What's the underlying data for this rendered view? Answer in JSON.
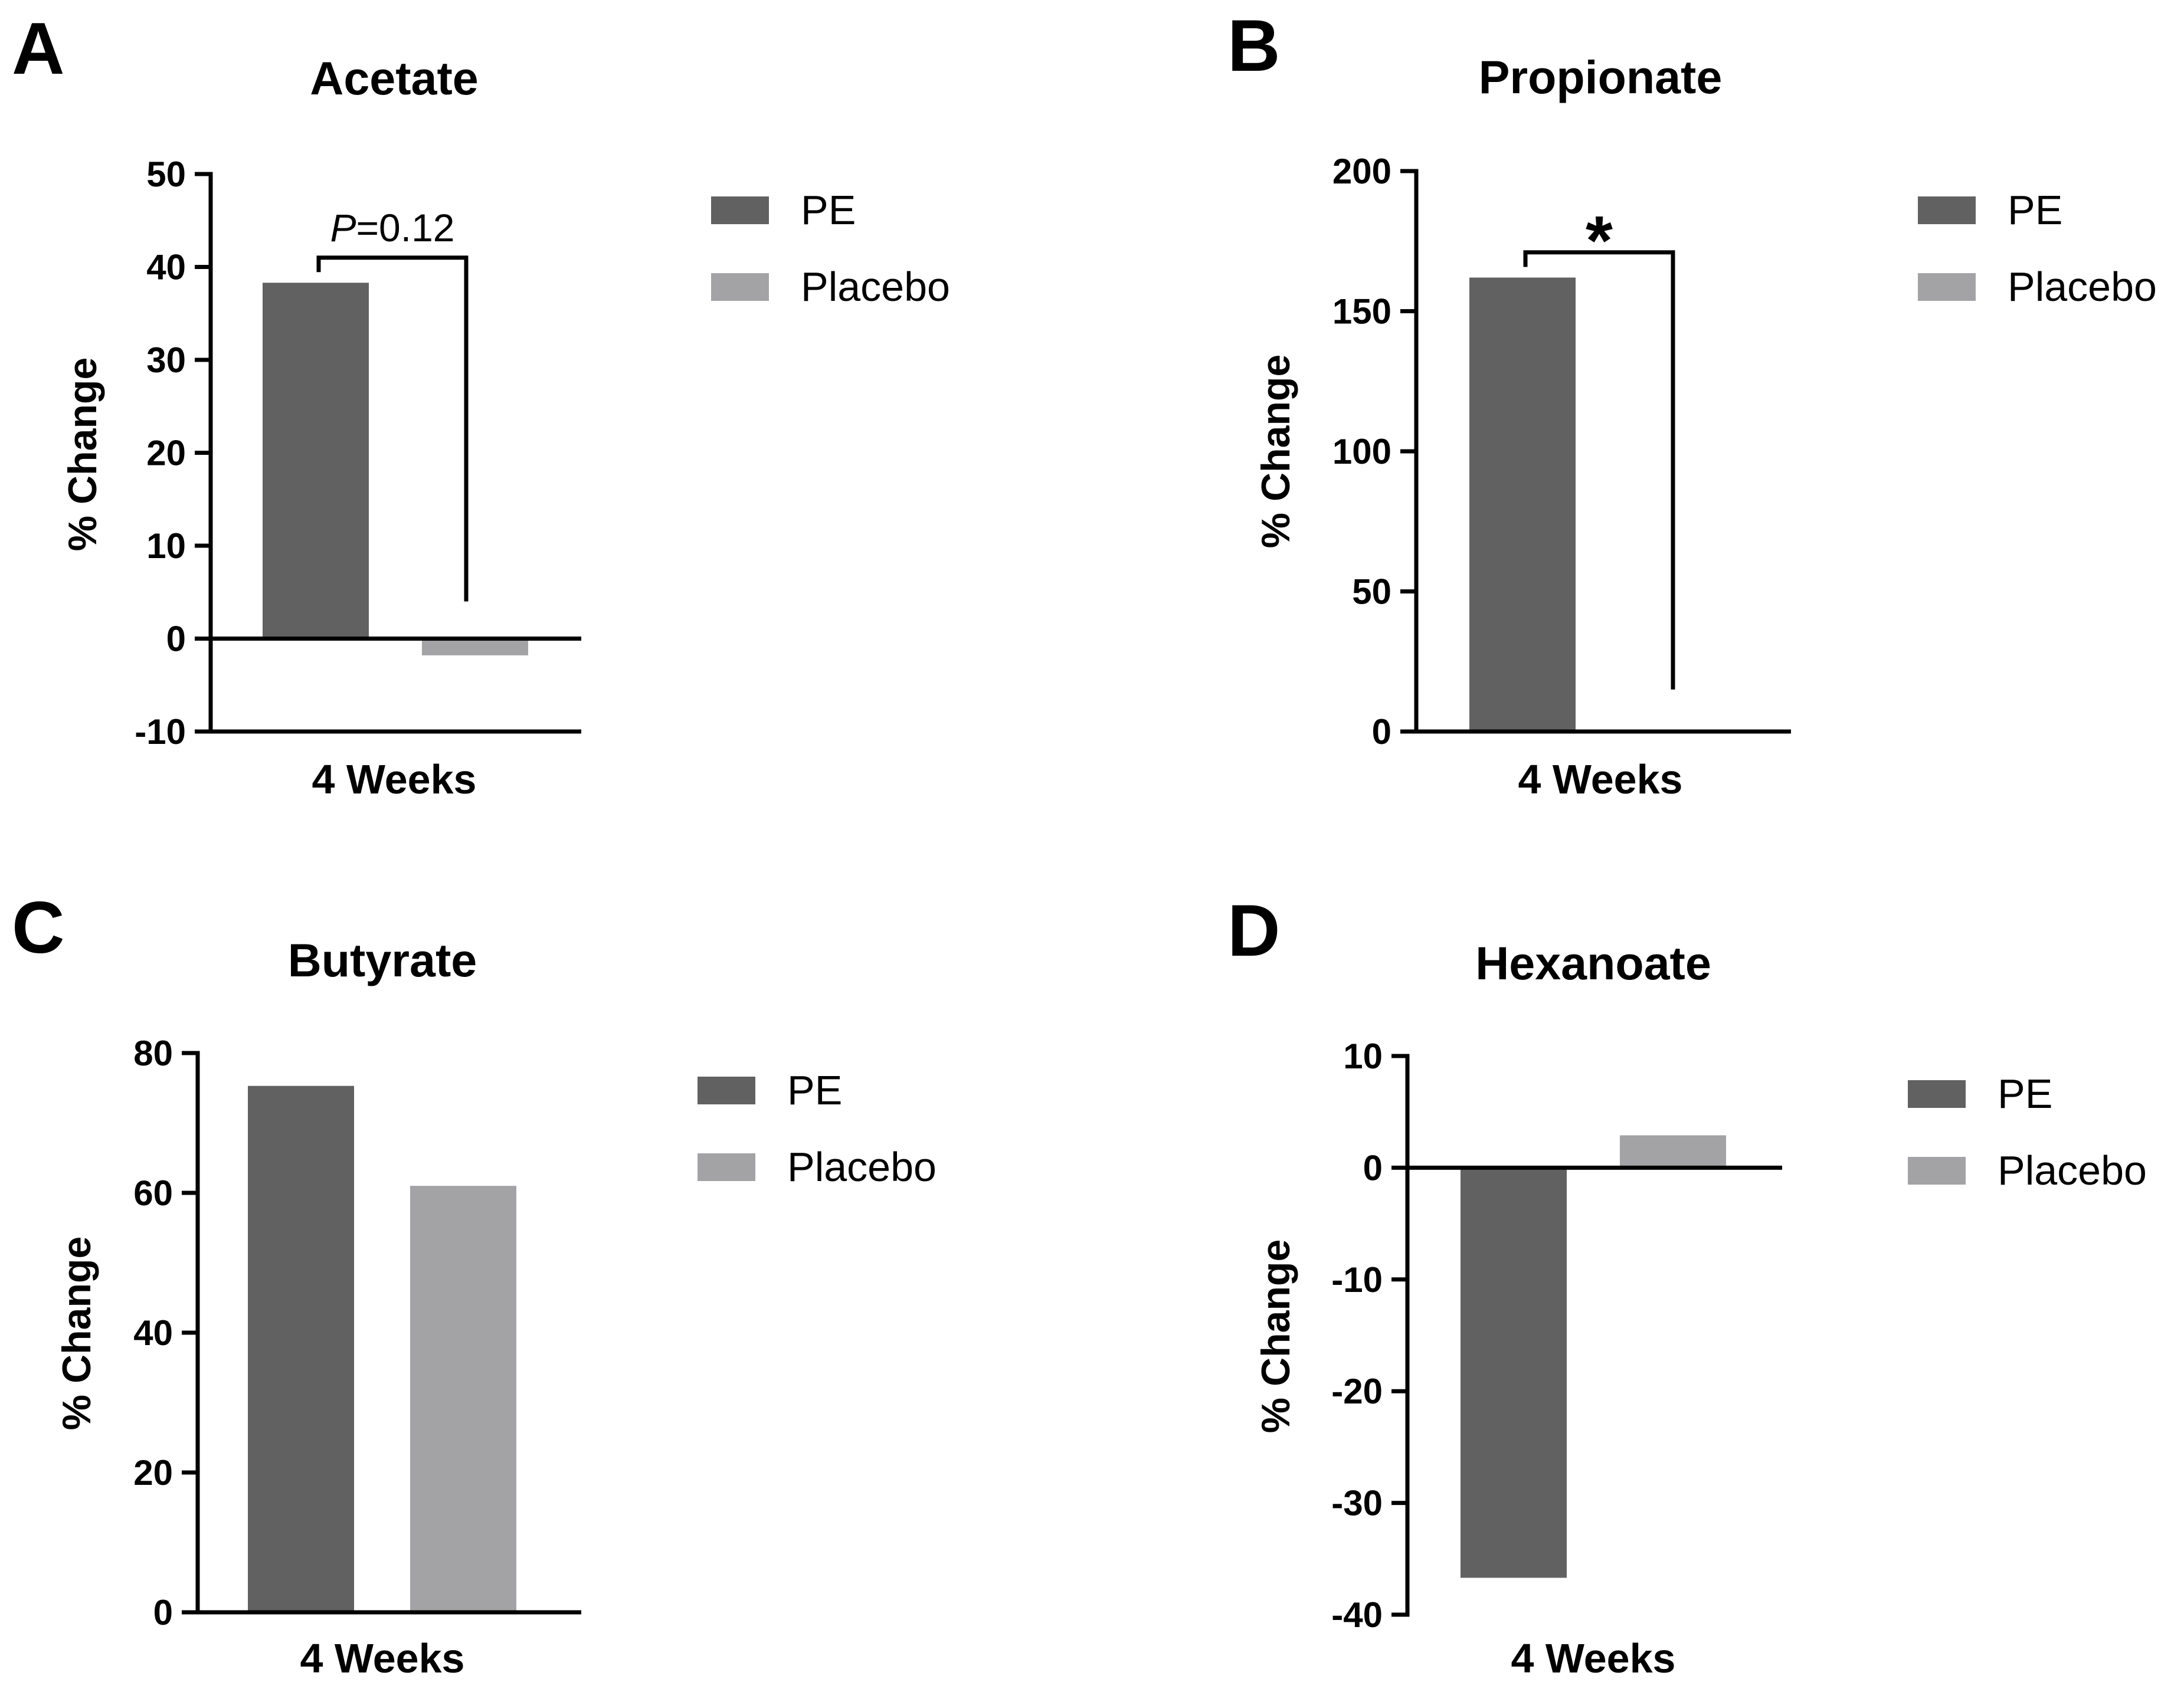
{
  "colors": {
    "PE": "#616161",
    "Placebo": "#a3a3a5",
    "axis": "#000000"
  },
  "chart_data": [
    {
      "panel": "A",
      "type": "bar",
      "title": "Acetate",
      "xlabel": "4 Weeks",
      "ylabel": "% Change",
      "ylim": [
        -10,
        50
      ],
      "yticks": [
        "-10",
        "0",
        "10",
        "20",
        "30",
        "40",
        "50"
      ],
      "legend_position": "right",
      "grid": false,
      "series": [
        {
          "name": "PE",
          "values": [
            38.3
          ]
        },
        {
          "name": "Placebo",
          "values": [
            -1.8
          ]
        }
      ],
      "annotation": {
        "prefix": "P",
        "suffix": "=0.12",
        "bracket_top": 41
      }
    },
    {
      "panel": "B",
      "type": "bar",
      "title": "Propionate",
      "xlabel": "4 Weeks",
      "ylabel": "% Change",
      "ylim": [
        0,
        200
      ],
      "yticks": [
        "0",
        "50",
        "100",
        "150",
        "200"
      ],
      "legend_position": "right",
      "grid": false,
      "series": [
        {
          "name": "PE",
          "values": [
            162
          ]
        },
        {
          "name": "Placebo",
          "values": [
            0
          ]
        }
      ],
      "annotation": {
        "prefix": "",
        "suffix": "*",
        "bracket_top": 171
      }
    },
    {
      "panel": "C",
      "type": "bar",
      "title": "Butyrate",
      "xlabel": "4 Weeks",
      "ylabel": "% Change",
      "ylim": [
        0,
        80
      ],
      "yticks": [
        "0",
        "20",
        "40",
        "60",
        "80"
      ],
      "legend_position": "right",
      "grid": false,
      "series": [
        {
          "name": "PE",
          "values": [
            75.3
          ]
        },
        {
          "name": "Placebo",
          "values": [
            61
          ]
        }
      ]
    },
    {
      "panel": "D",
      "type": "bar",
      "title": "Hexanoate",
      "xlabel": "4 Weeks",
      "ylabel": "% Change",
      "ylim": [
        -40,
        10
      ],
      "yticks": [
        "-40",
        "-30",
        "-20",
        "-10",
        "0",
        "10"
      ],
      "legend_position": "right",
      "grid": false,
      "series": [
        {
          "name": "PE",
          "values": [
            -36.7
          ]
        },
        {
          "name": "Placebo",
          "values": [
            2.9
          ]
        }
      ]
    }
  ]
}
